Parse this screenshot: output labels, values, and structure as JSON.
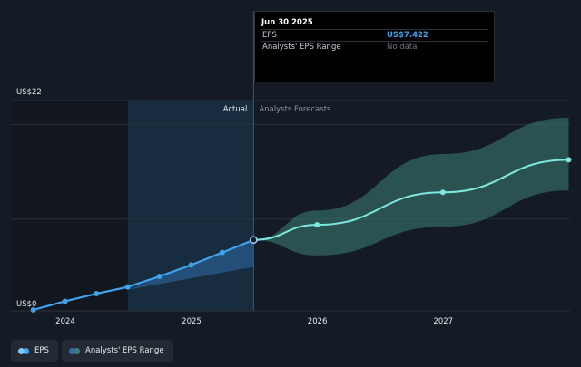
{
  "tooltip": {
    "date": "Jun 30 2025",
    "rows": [
      {
        "label": "EPS",
        "value": "US$7.422"
      },
      {
        "label": "Analysts' EPS Range",
        "value": "No data"
      }
    ]
  },
  "legend": {
    "eps": "EPS",
    "range": "Analysts' EPS Range"
  },
  "colors": {
    "background": "#151b24",
    "eps_line": "#3fa3ee",
    "forecast_line": "#7ee8e0",
    "range_band": "#3b7f77",
    "actual_highlight": "#1b3a55"
  },
  "chart_data": {
    "type": "line",
    "y_tick_labels": [
      "US$22",
      "US$0"
    ],
    "ylim": [
      0,
      22
    ],
    "x_tick_labels": [
      "2024",
      "2025",
      "2026",
      "2027"
    ],
    "section_labels": {
      "actual": "Actual",
      "forecast": "Analysts Forecasts"
    },
    "series": [
      {
        "name": "EPS",
        "points": [
          {
            "x": "2023-09-30",
            "y": 0.1
          },
          {
            "x": "2023-12-31",
            "y": 1.0
          },
          {
            "x": "2024-03-31",
            "y": 1.8
          },
          {
            "x": "2024-06-30",
            "y": 2.5
          },
          {
            "x": "2024-09-30",
            "y": 3.6
          },
          {
            "x": "2024-12-31",
            "y": 4.8
          },
          {
            "x": "2025-03-31",
            "y": 6.1
          },
          {
            "x": "2025-06-30",
            "y": 7.422
          }
        ]
      },
      {
        "name": "Analysts' EPS Range",
        "points": [
          {
            "x": "2025-06-30",
            "y": 7.422
          },
          {
            "x": "2025-12-31",
            "y": 9.0
          },
          {
            "x": "2026-12-31",
            "y": 12.4
          },
          {
            "x": "2027-12-31",
            "y": 15.8
          }
        ],
        "low": [
          7.422,
          5.8,
          8.8,
          12.6
        ],
        "high": [
          7.422,
          10.5,
          16.4,
          20.2
        ]
      }
    ],
    "grid": true
  }
}
